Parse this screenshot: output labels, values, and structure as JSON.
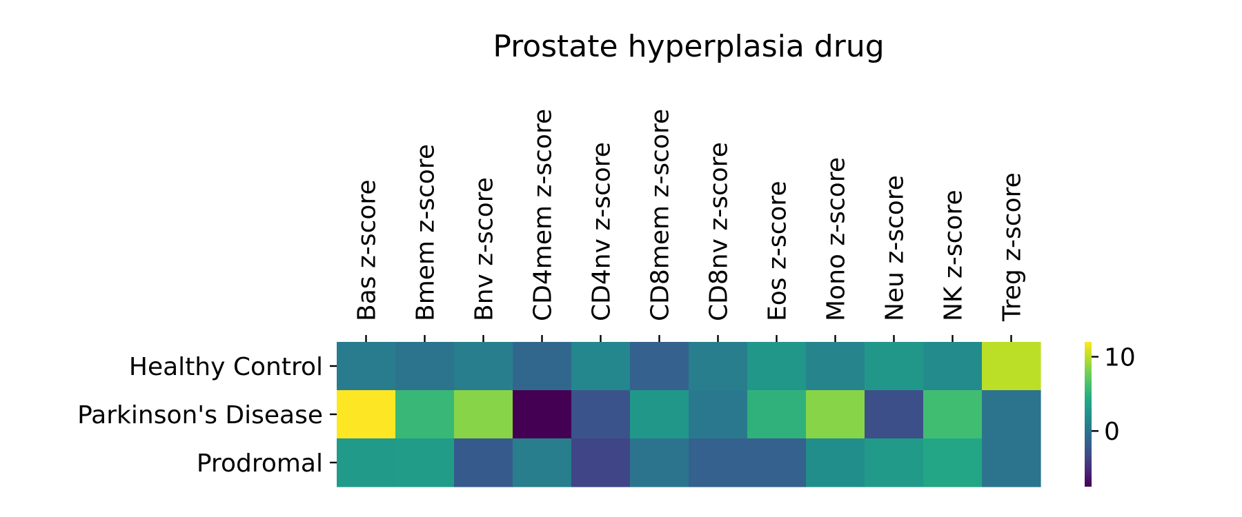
{
  "chart_data": {
    "type": "heatmap",
    "title": "Prostate hyperplasia drug",
    "columns": [
      "Bas z-score",
      "Bmem z-score",
      "Bnv z-score",
      "CD4mem z-score",
      "CD4nv z-score",
      "CD8mem z-score",
      "CD8nv z-score",
      "Eos z-score",
      "Mono z-score",
      "Neu z-score",
      "NK z-score",
      "Treg z-score"
    ],
    "rows": [
      "Healthy Control",
      "Parkinson's Disease",
      "Prodromal"
    ],
    "values": [
      [
        0.5,
        0.0,
        0.8,
        -1.0,
        1.5,
        -1.5,
        0.8,
        2.8,
        1.2,
        2.8,
        1.8,
        10.0
      ],
      [
        12.0,
        5.5,
        8.5,
        -7.5,
        -2.5,
        2.8,
        0.3,
        5.0,
        8.5,
        -2.8,
        6.0,
        0.0
      ],
      [
        3.0,
        3.2,
        -2.0,
        0.8,
        -3.5,
        0.0,
        -1.5,
        -1.5,
        2.0,
        3.0,
        4.0,
        0.0
      ]
    ],
    "colorbar": {
      "min": -7.5,
      "max": 12,
      "ticks": [
        0,
        10
      ],
      "tick_labels": [
        "0",
        "10"
      ]
    },
    "colormap": "viridis"
  }
}
